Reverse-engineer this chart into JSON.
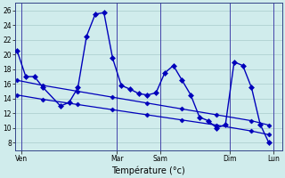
{
  "background_color": "#d0ecec",
  "grid_color": "#a8cccc",
  "line_color": "#0000bb",
  "xlabel": "Température (°c)",
  "ylim": [
    7,
    27
  ],
  "yticks": [
    8,
    10,
    12,
    14,
    16,
    18,
    20,
    22,
    24,
    26
  ],
  "day_labels": [
    "Ven",
    "Mar",
    "Sam",
    "Dim",
    "Lun"
  ],
  "day_tick_positions": [
    0.5,
    11.5,
    16.5,
    24.5,
    29.5
  ],
  "day_vline_positions": [
    0.5,
    11.5,
    16.5,
    24.5,
    29.5
  ],
  "xlim": [
    -0.2,
    30.5
  ],
  "series1_x": [
    0,
    1,
    2,
    3,
    5,
    6,
    7,
    8,
    9,
    10,
    11,
    12,
    13,
    14,
    15,
    16,
    17,
    18,
    19,
    20,
    21,
    22,
    23,
    24,
    25,
    26,
    27,
    28,
    29
  ],
  "series1_y": [
    20.5,
    17.0,
    17.0,
    15.5,
    13.0,
    13.5,
    15.5,
    22.5,
    25.5,
    25.7,
    19.5,
    15.8,
    15.3,
    14.7,
    14.5,
    14.8,
    17.5,
    18.5,
    16.5,
    14.5,
    11.5,
    11.0,
    10.0,
    10.5,
    19.0,
    18.5,
    15.5,
    10.5,
    8.0
  ],
  "series2_x": [
    0,
    3,
    7,
    11,
    15,
    19,
    23,
    27,
    29
  ],
  "series2_y": [
    14.5,
    13.9,
    13.2,
    12.5,
    11.8,
    11.1,
    10.4,
    9.6,
    9.1
  ],
  "series3_x": [
    0,
    3,
    7,
    11,
    15,
    19,
    23,
    27,
    29
  ],
  "series3_y": [
    16.5,
    15.8,
    15.0,
    14.2,
    13.4,
    12.6,
    11.8,
    11.0,
    10.4
  ]
}
